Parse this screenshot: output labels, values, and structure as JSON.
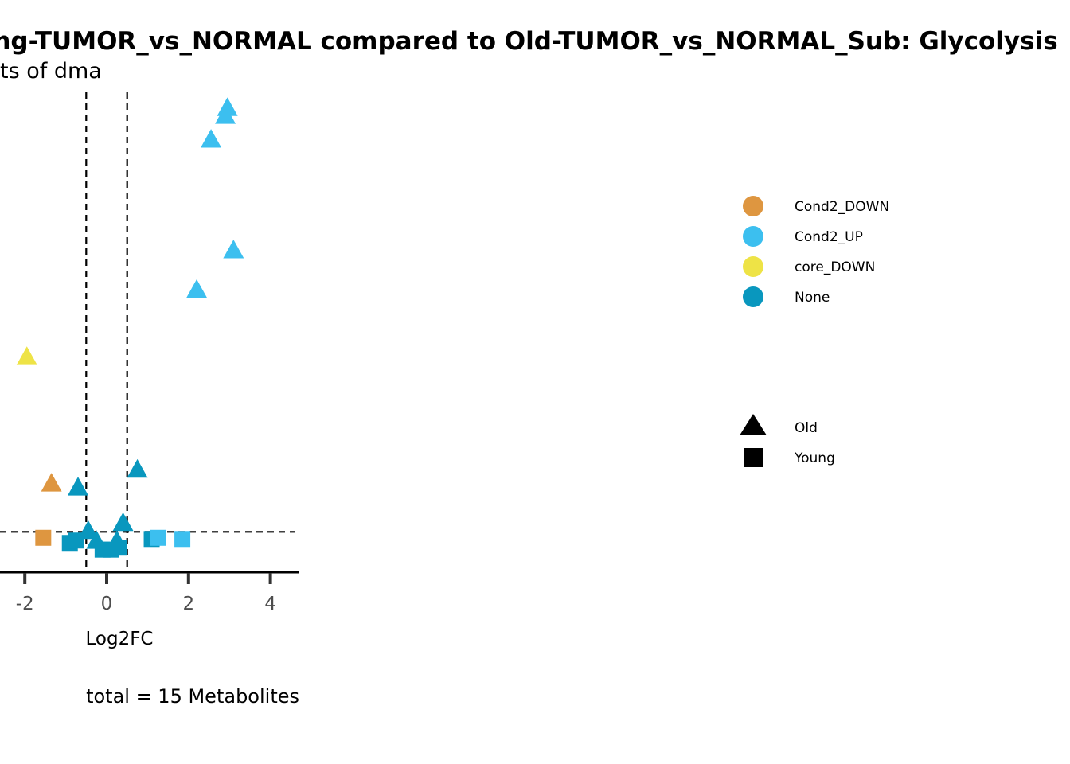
{
  "chart_data": {
    "type": "scatter",
    "title": "ng-TUMOR_vs_NORMAL compared to Old-TUMOR_vs_NORMAL_Sub: Glycolysis",
    "subtitle": "ts of dma",
    "xlabel": "Log2FC",
    "ylabel": "",
    "caption": "total = 15 Metabolites",
    "xlim": [
      -2.6,
      4.7
    ],
    "ylim": [
      0,
      12.2
    ],
    "x_ticks": [
      -2,
      0,
      2,
      4
    ],
    "x_tick_labels": [
      "-2",
      "0",
      "2",
      "4"
    ],
    "vlines": [
      -0.5,
      0.5
    ],
    "hline": 1.0,
    "colors": {
      "Cond2_DOWN": "#DE9640",
      "Cond2_UP": "#3CBFEF",
      "core_DOWN": "#EEE346",
      "None": "#0997BE"
    },
    "legend": {
      "color_entries": [
        "Cond2_DOWN",
        "Cond2_UP",
        "core_DOWN",
        "None"
      ],
      "shape_entries": [
        "Old",
        "Young"
      ],
      "placement": "right"
    },
    "series": [
      {
        "name": "Old",
        "shape": "triangle",
        "points": [
          {
            "x": 2.95,
            "y": 11.7,
            "group": "Cond2_UP"
          },
          {
            "x": 2.9,
            "y": 11.5,
            "group": "Cond2_UP"
          },
          {
            "x": 2.55,
            "y": 10.9,
            "group": "Cond2_UP"
          },
          {
            "x": 3.1,
            "y": 8.1,
            "group": "Cond2_UP"
          },
          {
            "x": 2.2,
            "y": 7.1,
            "group": "Cond2_UP"
          },
          {
            "x": -1.95,
            "y": 5.4,
            "group": "core_DOWN"
          },
          {
            "x": -1.35,
            "y": 2.2,
            "group": "Cond2_DOWN"
          },
          {
            "x": -0.7,
            "y": 2.1,
            "group": "None"
          },
          {
            "x": 0.75,
            "y": 2.55,
            "group": "None"
          },
          {
            "x": -0.45,
            "y": 1.0,
            "group": "None"
          },
          {
            "x": 0.4,
            "y": 1.2,
            "group": "None"
          },
          {
            "x": -0.25,
            "y": 0.75,
            "group": "None"
          },
          {
            "x": 0.25,
            "y": 0.75,
            "group": "None"
          }
        ]
      },
      {
        "name": "Young",
        "shape": "square",
        "points": [
          {
            "x": -1.55,
            "y": 0.85,
            "group": "Cond2_DOWN"
          },
          {
            "x": -0.9,
            "y": 0.72,
            "group": "None"
          },
          {
            "x": -0.75,
            "y": 0.78,
            "group": "None"
          },
          {
            "x": -0.1,
            "y": 0.55,
            "group": "None"
          },
          {
            "x": 0.1,
            "y": 0.55,
            "group": "None"
          },
          {
            "x": 0.3,
            "y": 0.6,
            "group": "None"
          },
          {
            "x": 1.1,
            "y": 0.82,
            "group": "None"
          },
          {
            "x": 1.25,
            "y": 0.85,
            "group": "Cond2_UP"
          },
          {
            "x": 1.85,
            "y": 0.82,
            "group": "Cond2_UP"
          }
        ]
      }
    ]
  }
}
